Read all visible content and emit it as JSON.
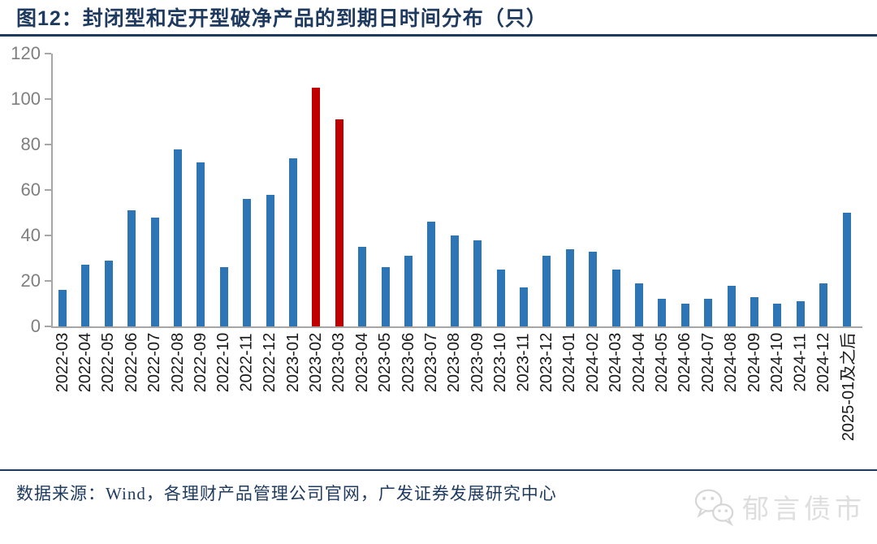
{
  "figure": {
    "title": "图12：封闭型和定开型破净产品的到期日时间分布（只）"
  },
  "chart_data": {
    "type": "bar",
    "title": "封闭型和定开型破净产品的到期日时间分布（只）",
    "categories": [
      "2022-03",
      "2022-04",
      "2022-05",
      "2022-06",
      "2022-07",
      "2022-08",
      "2022-09",
      "2022-10",
      "2022-11",
      "2022-12",
      "2023-01",
      "2023-02",
      "2023-03",
      "2023-04",
      "2023-05",
      "2023-06",
      "2023-07",
      "2023-08",
      "2023-09",
      "2023-10",
      "2023-11",
      "2023-12",
      "2024-01",
      "2024-02",
      "2024-03",
      "2024-04",
      "2024-05",
      "2024-06",
      "2024-07",
      "2024-08",
      "2024-09",
      "2024-10",
      "2024-11",
      "2024-12",
      "2025-01及之后"
    ],
    "values": [
      16,
      27,
      29,
      51,
      48,
      78,
      72,
      26,
      56,
      58,
      74,
      105,
      91,
      35,
      26,
      31,
      46,
      40,
      38,
      25,
      17,
      31,
      34,
      33,
      25,
      19,
      12,
      10,
      12,
      18,
      13,
      10,
      11,
      19,
      50
    ],
    "highlight_indices": [
      11,
      12
    ],
    "highlight_categories": [
      "2023-02",
      "2023-03"
    ],
    "colors": {
      "bar": "#2E75B6",
      "highlight": "#C00000",
      "axis": "#A6A6A6",
      "ytick_label": "#7f7f7f",
      "xtick_label": "#1a1a1a",
      "accent_navy": "#1E3A5F"
    },
    "ylim": [
      0,
      120
    ],
    "yticks": [
      0,
      20,
      40,
      60,
      80,
      100,
      120
    ],
    "grid": false,
    "legend": null
  },
  "footer": {
    "source": "数据来源：Wind，各理财产品管理公司官网，广发证券发展研究中心",
    "watermark": "郁言债市"
  }
}
